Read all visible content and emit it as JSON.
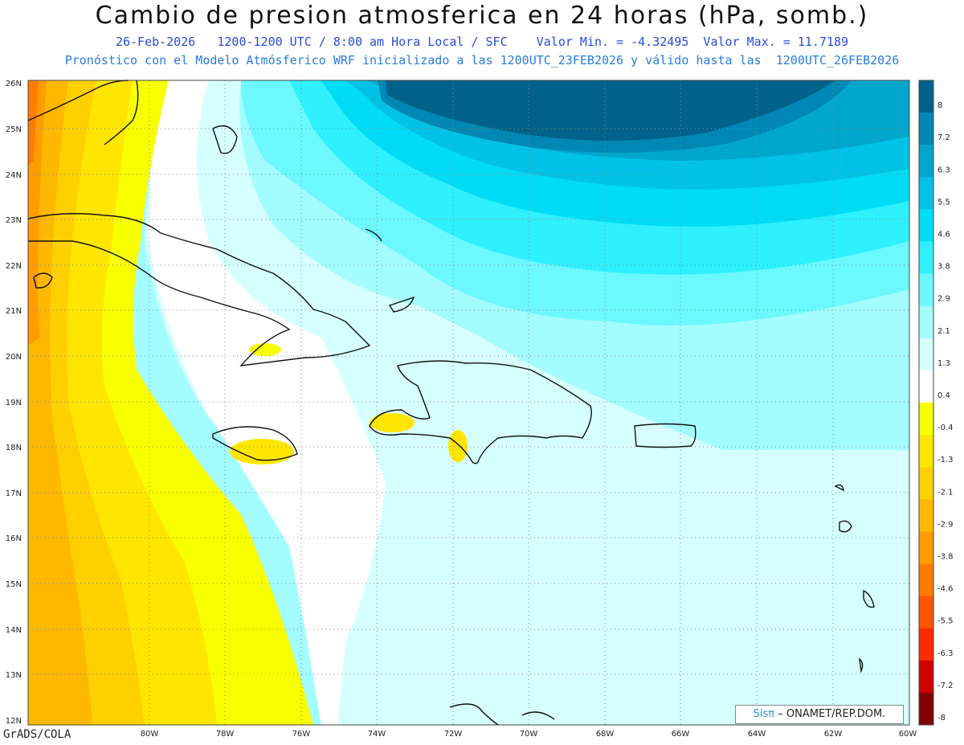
{
  "title": "Cambio de presion atmosferica en 24 horas (hPa, somb.)",
  "subtitle1": "26-Feb-2026   1200-1200 UTC / 8:00 am Hora Local / SFC    Valor Min. = -4.32495  Valor Max. = 11.7189",
  "subtitle2": "Pronóstico con el Modelo Atmósferico WRF inicializado a las 1200UTC_23FEB2026 y válido hasta las  1200UTC_26FEB2026",
  "footer": "GrADS/COLA",
  "credit": {
    "brand": "Sisπ",
    "org": "– ONAMET/REP.DOM."
  },
  "map": {
    "lon_labels": [
      "80W",
      "78W",
      "76W",
      "74W",
      "72W",
      "70W",
      "68W",
      "66W",
      "64W",
      "62W",
      "60W"
    ],
    "lat_labels": [
      "26N",
      "25N",
      "24N",
      "23N",
      "22N",
      "21N",
      "20N",
      "19N",
      "18N",
      "17N",
      "16N",
      "15N",
      "14N",
      "13N",
      "12N"
    ]
  },
  "colorbar": {
    "labels": [
      "8",
      "7.2",
      "6.3",
      "5.5",
      "4.6",
      "3.8",
      "2.9",
      "2.1",
      "1.3",
      "0.4",
      "-0.4",
      "-1.3",
      "-2.1",
      "-2.9",
      "-3.8",
      "-4.6",
      "-5.5",
      "-6.3",
      "-7.2",
      "-8"
    ],
    "colors": [
      "#00628a",
      "#0087b3",
      "#00a6cc",
      "#00c2e6",
      "#00dcf5",
      "#2ef0ff",
      "#6bf8ff",
      "#a3fcff",
      "#d6ffff",
      "#ffffff",
      "#f8ff00",
      "#ffe600",
      "#ffd000",
      "#ffb800",
      "#ff9d00",
      "#ff7c00",
      "#ff5500",
      "#ff2a00",
      "#d00000",
      "#800000"
    ]
  }
}
